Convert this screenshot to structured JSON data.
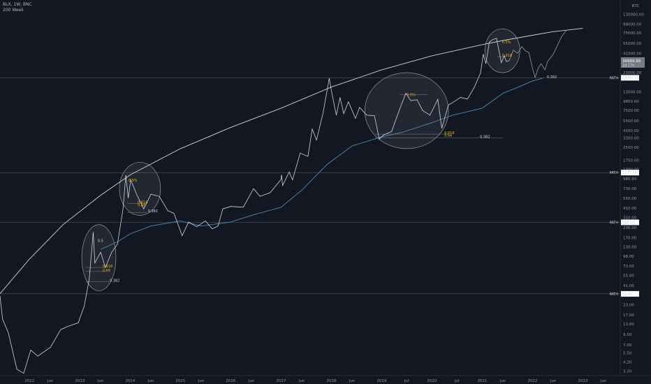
{
  "header": {
    "symbol": "BLX, 1W, BNC",
    "indicator": "200 Week"
  },
  "price_axis": {
    "currency": "BTC",
    "current_price": "36689.89",
    "countdown": "2d 17h"
  },
  "chart_data": {
    "type": "line",
    "scale": "log",
    "xlim": [
      "2011-06-01",
      "2023-09-30"
    ],
    "ylim": [
      2.8,
      200000
    ],
    "grid": false,
    "y_ticks": [
      {
        "label": "170000.00",
        "v": 170000
      },
      {
        "label": "130000.00",
        "v": 130000
      },
      {
        "label": "98000.00",
        "v": 98000
      },
      {
        "label": "75000.00",
        "v": 75000
      },
      {
        "label": "55000.00",
        "v": 55000
      },
      {
        "label": "41000.00",
        "v": 41000
      },
      {
        "label": "23000.00",
        "v": 23000
      },
      {
        "label": "13000.00",
        "v": 13000
      },
      {
        "label": "9800.00",
        "v": 9800
      },
      {
        "label": "7500.00",
        "v": 7500
      },
      {
        "label": "5500.00",
        "v": 5500
      },
      {
        "label": "4100.00",
        "v": 4100
      },
      {
        "label": "3300.00",
        "v": 3300
      },
      {
        "label": "2500.00",
        "v": 2500
      },
      {
        "label": "1700.00",
        "v": 1700
      },
      {
        "label": "1300.00",
        "v": 1300
      },
      {
        "label": "980.00",
        "v": 980
      },
      {
        "label": "730.00",
        "v": 730
      },
      {
        "label": "550.00",
        "v": 550
      },
      {
        "label": "410.00",
        "v": 410
      },
      {
        "label": "310.00",
        "v": 310
      },
      {
        "label": "230.00",
        "v": 230
      },
      {
        "label": "170.00",
        "v": 170
      },
      {
        "label": "130.00",
        "v": 130
      },
      {
        "label": "98.00",
        "v": 98
      },
      {
        "label": "73.00",
        "v": 73
      },
      {
        "label": "55.00",
        "v": 55
      },
      {
        "label": "41.00",
        "v": 41
      },
      {
        "label": "23.00",
        "v": 23
      },
      {
        "label": "17.00",
        "v": 17
      },
      {
        "label": "13.00",
        "v": 13
      },
      {
        "label": "9.50",
        "v": 9.5
      },
      {
        "label": "7.00",
        "v": 7
      },
      {
        "label": "5.50",
        "v": 5.5
      },
      {
        "label": "4.20",
        "v": 4.2
      },
      {
        "label": "3.20",
        "v": 3.2
      }
    ],
    "x_ticks": [
      {
        "label": "Jun",
        "t": "2011-06-01"
      },
      {
        "label": "2012",
        "t": "2012-01-01"
      },
      {
        "label": "Jun",
        "t": "2012-06-01"
      },
      {
        "label": "2013",
        "t": "2013-01-01"
      },
      {
        "label": "Jun",
        "t": "2013-06-01"
      },
      {
        "label": "2014",
        "t": "2014-01-01"
      },
      {
        "label": "Jun",
        "t": "2014-06-01"
      },
      {
        "label": "2015",
        "t": "2015-01-01"
      },
      {
        "label": "Jun",
        "t": "2015-06-01"
      },
      {
        "label": "2016",
        "t": "2016-01-01"
      },
      {
        "label": "Jun",
        "t": "2016-06-01"
      },
      {
        "label": "2017",
        "t": "2017-01-01"
      },
      {
        "label": "Jun",
        "t": "2017-06-01"
      },
      {
        "label": "2018",
        "t": "2018-01-01"
      },
      {
        "label": "Jun",
        "t": "2018-06-01"
      },
      {
        "label": "2019",
        "t": "2019-01-01"
      },
      {
        "label": "Jul",
        "t": "2019-07-01"
      },
      {
        "label": "2020",
        "t": "2020-01-01"
      },
      {
        "label": "Jul",
        "t": "2020-07-01"
      },
      {
        "label": "2021",
        "t": "2021-01-01"
      },
      {
        "label": "Jun",
        "t": "2021-06-01"
      },
      {
        "label": "2022",
        "t": "2022-01-01"
      },
      {
        "label": "Jun",
        "t": "2022-06-01"
      },
      {
        "label": "2023",
        "t": "2023-01-01"
      },
      {
        "label": "Jun",
        "t": "2023-06-01"
      }
    ],
    "price_series": {
      "name": "",
      "color": "#d1d4dc",
      "points": [
        [
          "2011-06-01",
          30
        ],
        [
          "2011-06-20",
          15
        ],
        [
          "2011-08-01",
          10
        ],
        [
          "2011-10-01",
          3.4
        ],
        [
          "2011-11-20",
          3
        ],
        [
          "2012-01-10",
          6
        ],
        [
          "2012-03-01",
          5
        ],
        [
          "2012-06-01",
          6.5
        ],
        [
          "2012-08-15",
          11
        ],
        [
          "2012-10-01",
          12
        ],
        [
          "2012-12-20",
          13.5
        ],
        [
          "2013-02-01",
          22
        ],
        [
          "2013-03-10",
          50
        ],
        [
          "2013-04-08",
          200
        ],
        [
          "2013-04-20",
          80
        ],
        [
          "2013-06-01",
          110
        ],
        [
          "2013-07-05",
          70
        ],
        [
          "2013-08-20",
          110
        ],
        [
          "2013-10-01",
          140
        ],
        [
          "2013-11-10",
          400
        ],
        [
          "2013-12-01",
          1100
        ],
        [
          "2013-12-18",
          550
        ],
        [
          "2014-01-05",
          950
        ],
        [
          "2014-02-20",
          600
        ],
        [
          "2014-04-10",
          400
        ],
        [
          "2014-06-01",
          620
        ],
        [
          "2014-08-01",
          580
        ],
        [
          "2014-10-01",
          380
        ],
        [
          "2014-11-15",
          350
        ],
        [
          "2015-01-14",
          180
        ],
        [
          "2015-03-01",
          270
        ],
        [
          "2015-05-01",
          235
        ],
        [
          "2015-07-01",
          280
        ],
        [
          "2015-08-20",
          220
        ],
        [
          "2015-10-01",
          240
        ],
        [
          "2015-11-05",
          400
        ],
        [
          "2016-01-01",
          430
        ],
        [
          "2016-04-01",
          420
        ],
        [
          "2016-06-15",
          730
        ],
        [
          "2016-08-01",
          580
        ],
        [
          "2016-10-15",
          650
        ],
        [
          "2016-12-31",
          960
        ],
        [
          "2017-01-05",
          1100
        ],
        [
          "2017-01-12",
          800
        ],
        [
          "2017-03-01",
          1200
        ],
        [
          "2017-03-25",
          950
        ],
        [
          "2017-05-20",
          2100
        ],
        [
          "2017-07-15",
          1900
        ],
        [
          "2017-08-15",
          4300
        ],
        [
          "2017-09-15",
          3100
        ],
        [
          "2017-11-01",
          6800
        ],
        [
          "2017-12-17",
          19500
        ],
        [
          "2018-01-01",
          13500
        ],
        [
          "2018-02-06",
          6500
        ],
        [
          "2018-03-05",
          11000
        ],
        [
          "2018-04-01",
          6800
        ],
        [
          "2018-05-05",
          9700
        ],
        [
          "2018-06-25",
          5900
        ],
        [
          "2018-07-25",
          8200
        ],
        [
          "2018-09-15",
          6500
        ],
        [
          "2018-11-10",
          6400
        ],
        [
          "2018-12-15",
          3200
        ],
        [
          "2019-01-15",
          3600
        ],
        [
          "2019-03-15",
          4000
        ],
        [
          "2019-05-15",
          8000
        ],
        [
          "2019-06-26",
          12500
        ],
        [
          "2019-08-01",
          10000
        ],
        [
          "2019-09-15",
          10300
        ],
        [
          "2019-10-25",
          7500
        ],
        [
          "2019-12-18",
          6500
        ],
        [
          "2020-02-13",
          10400
        ],
        [
          "2020-03-13",
          4400
        ],
        [
          "2020-04-30",
          8800
        ],
        [
          "2020-06-01",
          9500
        ],
        [
          "2020-07-27",
          11000
        ],
        [
          "2020-09-15",
          10500
        ],
        [
          "2020-11-05",
          15000
        ],
        [
          "2020-12-20",
          23000
        ],
        [
          "2021-01-08",
          40000
        ],
        [
          "2021-01-27",
          30000
        ],
        [
          "2021-02-21",
          57000
        ],
        [
          "2021-03-13",
          61000
        ],
        [
          "2021-04-14",
          64000
        ],
        [
          "2021-05-19",
          31000
        ],
        [
          "2021-06-10",
          38000
        ],
        [
          "2021-06-25",
          32000
        ],
        [
          "2021-07-15",
          33000
        ]
      ]
    },
    "ma_series": {
      "name": "",
      "color": "#4a8bb5",
      "points": [
        [
          "2013-06-01",
          120
        ],
        [
          "2013-10-01",
          150
        ],
        [
          "2014-01-01",
          190
        ],
        [
          "2014-06-01",
          240
        ],
        [
          "2015-01-01",
          280
        ],
        [
          "2015-06-01",
          240
        ],
        [
          "2016-01-01",
          270
        ],
        [
          "2016-06-01",
          330
        ],
        [
          "2017-01-01",
          420
        ],
        [
          "2017-06-01",
          700
        ],
        [
          "2017-12-01",
          1500
        ],
        [
          "2018-06-01",
          2600
        ],
        [
          "2019-01-01",
          3400
        ],
        [
          "2019-06-01",
          3900
        ],
        [
          "2020-01-01",
          5200
        ],
        [
          "2020-06-01",
          6500
        ],
        [
          "2021-01-01",
          8000
        ],
        [
          "2021-06-01",
          12500
        ],
        [
          "2021-09-01",
          14500
        ],
        [
          "2022-01-01",
          18000
        ],
        [
          "2022-03-15",
          19500
        ]
      ]
    },
    "projection_path": {
      "color": "#9598a1",
      "points": [
        [
          "2021-07-15",
          33000
        ],
        [
          "2021-08-15",
          45000
        ],
        [
          "2021-09-15",
          41000
        ],
        [
          "2021-10-15",
          50000
        ],
        [
          "2021-11-10",
          44000
        ],
        [
          "2021-12-05",
          42000
        ],
        [
          "2022-01-01",
          26000
        ],
        [
          "2022-01-20",
          20000
        ],
        [
          "2022-02-10",
          26000
        ],
        [
          "2022-03-05",
          30000
        ],
        [
          "2022-04-01",
          25000
        ],
        [
          "2022-04-20",
          32000
        ],
        [
          "2022-06-01",
          40000
        ],
        [
          "2022-07-01",
          52000
        ],
        [
          "2022-08-01",
          68000
        ],
        [
          "2022-09-01",
          80000
        ]
      ]
    },
    "upper_curve": {
      "color": "#d1d4dc",
      "points": [
        [
          "2011-06-01",
          32
        ],
        [
          "2012-01-01",
          90
        ],
        [
          "2012-09-01",
          250
        ],
        [
          "2013-06-01",
          600
        ],
        [
          "2014-01-01",
          1100
        ],
        [
          "2015-01-01",
          2400
        ],
        [
          "2016-01-01",
          4500
        ],
        [
          "2017-01-01",
          8000
        ],
        [
          "2018-01-01",
          15000
        ],
        [
          "2019-01-01",
          25000
        ],
        [
          "2020-01-01",
          38000
        ],
        [
          "2021-01-01",
          53000
        ],
        [
          "2021-06-01",
          60000
        ],
        [
          "2022-01-01",
          70000
        ],
        [
          "2022-06-01",
          78000
        ],
        [
          "2023-01-01",
          86000
        ]
      ]
    },
    "horizontal_levels": [
      {
        "label": "PATH",
        "value": "19764.31",
        "v": 19764
      },
      {
        "label": "PATH",
        "value": "1177.18",
        "v": 1177
      },
      {
        "label": "PATH",
        "value": "268.63",
        "v": 268
      },
      {
        "label": "PATH",
        "value": "31.90",
        "v": 31.9
      }
    ],
    "ellipses": [
      {
        "t0": "2013-01-15",
        "t1": "2013-09-20",
        "v0": 35,
        "v1": 250
      },
      {
        "t0": "2013-10-15",
        "t1": "2014-08-10",
        "v0": 330,
        "v1": 1600
      },
      {
        "t0": "2018-09-01",
        "t1": "2020-05-01",
        "v0": 2400,
        "v1": 23000
      },
      {
        "t0": "2021-01-20",
        "t1": "2021-10-01",
        "v0": 23000,
        "v1": 85000
      }
    ],
    "fib_annotations": [
      {
        "text": "0.5",
        "t": "2013-05-10",
        "v": 150,
        "color": "#d1d4dc"
      },
      {
        "text": "0.618",
        "t": "2013-06-15",
        "v": 70,
        "color": "#f0b90b"
      },
      {
        "text": "0.66",
        "t": "2013-06-15",
        "v": 62,
        "color": "#f0b90b"
      },
      {
        "text": "0.382",
        "t": "2013-08-05",
        "v": 46,
        "color": "#d1d4dc"
      },
      {
        "text": "0.5%",
        "t": "2013-12-20",
        "v": 900,
        "color": "#f0b90b"
      },
      {
        "text": "0.618",
        "t": "2014-02-25",
        "v": 470,
        "color": "#f0b90b"
      },
      {
        "text": "0.66",
        "t": "2014-02-25",
        "v": 430,
        "color": "#f0b90b"
      },
      {
        "text": "0.382",
        "t": "2014-05-10",
        "v": 360,
        "color": "#d1d4dc"
      },
      {
        "text": "0.5%",
        "t": "2019-07-01",
        "v": 11500,
        "color": "#f0b90b"
      },
      {
        "text": "0.618",
        "t": "2020-04-01",
        "v": 3700,
        "color": "#f0b90b"
      },
      {
        "text": "0.66",
        "t": "2020-04-01",
        "v": 3450,
        "color": "#f0b90b"
      },
      {
        "text": "0.382",
        "t": "2020-12-15",
        "v": 3300,
        "color": "#d1d4dc"
      },
      {
        "text": "0.5%",
        "t": "2021-05-25",
        "v": 55000,
        "color": "#f0b90b"
      },
      {
        "text": "0.618",
        "t": "2021-05-25",
        "v": 37000,
        "color": "#f0b90b"
      },
      {
        "text": "0.382",
        "t": "2022-04-15",
        "v": 19500,
        "color": "#d1d4dc"
      }
    ],
    "fib_lines": [
      {
        "t0": "2013-02-10",
        "t1": "2013-07-10",
        "v": 70
      },
      {
        "t0": "2013-02-10",
        "t1": "2013-07-10",
        "v": 62
      },
      {
        "t0": "2013-02-10",
        "t1": "2013-08-01",
        "v": 46
      },
      {
        "t0": "2013-12-10",
        "t1": "2014-03-10",
        "v": 470
      },
      {
        "t0": "2013-12-10",
        "t1": "2014-05-05",
        "v": 360
      },
      {
        "t0": "2019-05-15",
        "t1": "2019-12-01",
        "v": 12000
      },
      {
        "t0": "2018-11-15",
        "t1": "2020-05-01",
        "v": 3700
      },
      {
        "t0": "2018-11-15",
        "t1": "2021-06-01",
        "v": 3300
      },
      {
        "t0": "2021-04-20",
        "t1": "2021-06-20",
        "v": 37000
      }
    ]
  }
}
